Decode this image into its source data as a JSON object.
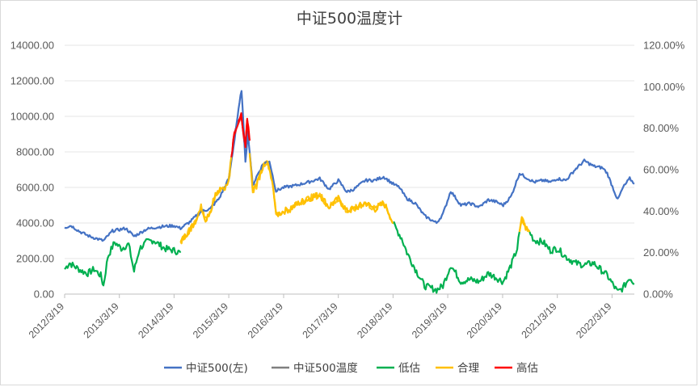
{
  "chart_data": {
    "type": "line",
    "title": "中证500温度计",
    "left_axis": {
      "ticks": [
        "0.00",
        "2000.00",
        "4000.00",
        "6000.00",
        "8000.00",
        "10000.00",
        "12000.00",
        "14000.00"
      ],
      "range": [
        0,
        14000
      ]
    },
    "right_axis": {
      "ticks": [
        "0.00%",
        "20.00%",
        "40.00%",
        "60.00%",
        "80.00%",
        "100.00%",
        "120.00%"
      ],
      "range": [
        0,
        120
      ]
    },
    "x_ticks": [
      "2012/3/19",
      "2013/3/19",
      "2014/3/19",
      "2015/3/19",
      "2016/3/19",
      "2017/3/19",
      "2018/3/19",
      "2019/3/19",
      "2020/3/19",
      "2021/3/19",
      "2022/3/19"
    ],
    "x_range": [
      "2012-03-19",
      "2022-08-15"
    ],
    "legend": [
      "中证500(左)",
      "中证500温度",
      "低估",
      "合理",
      "高估"
    ],
    "colors": {
      "index": "#4472c4",
      "temperature": "#7f7f7f",
      "low": "#00b050",
      "mid": "#ffc000",
      "high": "#ff0000"
    },
    "series": [
      {
        "name": "中证500(左)",
        "axis": "left",
        "points": [
          [
            "2012-03-19",
            3750
          ],
          [
            "2012-05-01",
            3850
          ],
          [
            "2012-07-01",
            3500
          ],
          [
            "2012-09-01",
            3250
          ],
          [
            "2012-12-03",
            3000
          ],
          [
            "2013-02-01",
            3550
          ],
          [
            "2013-05-01",
            3700
          ],
          [
            "2013-06-25",
            3250
          ],
          [
            "2013-09-15",
            3650
          ],
          [
            "2013-11-15",
            3750
          ],
          [
            "2014-01-01",
            3800
          ],
          [
            "2014-03-19",
            3850
          ],
          [
            "2014-05-01",
            3700
          ],
          [
            "2014-07-01",
            4050
          ],
          [
            "2014-09-15",
            4650
          ],
          [
            "2014-11-15",
            4800
          ],
          [
            "2015-01-15",
            5400
          ],
          [
            "2015-03-19",
            6500
          ],
          [
            "2015-04-20",
            8300
          ],
          [
            "2015-05-10",
            9600
          ],
          [
            "2015-06-12",
            11500
          ],
          [
            "2015-07-08",
            7500
          ],
          [
            "2015-07-25",
            9100
          ],
          [
            "2015-08-26",
            6100
          ],
          [
            "2015-09-20",
            6600
          ],
          [
            "2015-11-01",
            7300
          ],
          [
            "2015-12-15",
            7500
          ],
          [
            "2016-01-28",
            5800
          ],
          [
            "2016-03-19",
            6000
          ],
          [
            "2016-06-01",
            6100
          ],
          [
            "2016-09-01",
            6300
          ],
          [
            "2016-11-15",
            6500
          ],
          [
            "2017-01-16",
            5900
          ],
          [
            "2017-03-19",
            6400
          ],
          [
            "2017-05-15",
            5750
          ],
          [
            "2017-07-01",
            5900
          ],
          [
            "2017-09-15",
            6400
          ],
          [
            "2017-11-15",
            6400
          ],
          [
            "2018-01-15",
            6600
          ],
          [
            "2018-03-19",
            6200
          ],
          [
            "2018-05-01",
            6000
          ],
          [
            "2018-06-15",
            5400
          ],
          [
            "2018-08-15",
            5100
          ],
          [
            "2018-10-15",
            4400
          ],
          [
            "2019-01-03",
            4000
          ],
          [
            "2019-02-15",
            4500
          ],
          [
            "2019-04-08",
            5800
          ],
          [
            "2019-06-15",
            5000
          ],
          [
            "2019-08-15",
            5100
          ],
          [
            "2019-10-15",
            4900
          ],
          [
            "2019-12-15",
            5300
          ],
          [
            "2020-02-03",
            5200
          ],
          [
            "2020-03-23",
            5000
          ],
          [
            "2020-05-15",
            5500
          ],
          [
            "2020-07-10",
            6800
          ],
          [
            "2020-08-15",
            6600
          ],
          [
            "2020-10-15",
            6300
          ],
          [
            "2020-12-15",
            6400
          ],
          [
            "2021-02-01",
            6300
          ],
          [
            "2021-03-19",
            6500
          ],
          [
            "2021-05-15",
            6400
          ],
          [
            "2021-07-15",
            7000
          ],
          [
            "2021-09-15",
            7500
          ],
          [
            "2021-11-15",
            7200
          ],
          [
            "2022-01-15",
            7100
          ],
          [
            "2022-02-15",
            6800
          ],
          [
            "2022-04-26",
            5300
          ],
          [
            "2022-06-01",
            6000
          ],
          [
            "2022-07-15",
            6500
          ],
          [
            "2022-08-15",
            6200
          ]
        ]
      },
      {
        "name": "中证500温度",
        "axis": "right",
        "segments": [
          {
            "zone": "low",
            "points": [
              [
                "2012-03-19",
                12
              ],
              [
                "2012-04-20",
                15
              ],
              [
                "2012-06-01",
                13
              ],
              [
                "2012-07-15",
                11
              ],
              [
                "2012-08-20",
                10
              ],
              [
                "2012-10-01",
                12
              ],
              [
                "2012-11-15",
                9
              ],
              [
                "2012-12-03",
                4
              ],
              [
                "2013-01-01",
                18
              ],
              [
                "2013-02-15",
                25
              ],
              [
                "2013-04-01",
                22
              ],
              [
                "2013-05-20",
                24
              ],
              [
                "2013-06-25",
                11
              ],
              [
                "2013-08-01",
                22
              ],
              [
                "2013-09-15",
                25
              ],
              [
                "2013-11-01",
                26
              ],
              [
                "2014-01-15",
                22
              ],
              [
                "2014-03-19",
                21
              ],
              [
                "2014-05-01",
                20
              ]
            ]
          },
          {
            "zone": "mid",
            "points": [
              [
                "2014-05-01",
                25
              ],
              [
                "2014-06-20",
                30
              ],
              [
                "2014-08-01",
                34
              ],
              [
                "2014-09-15",
                42
              ],
              [
                "2014-10-15",
                36
              ],
              [
                "2014-11-20",
                41
              ],
              [
                "2014-12-20",
                48
              ],
              [
                "2015-01-20",
                50
              ],
              [
                "2015-03-01",
                52
              ],
              [
                "2015-03-25",
                58
              ],
              [
                "2015-04-05",
                66
              ]
            ]
          },
          {
            "zone": "high",
            "points": [
              [
                "2015-04-05",
                66
              ],
              [
                "2015-04-25",
                78
              ],
              [
                "2015-05-15",
                82
              ],
              [
                "2015-06-01",
                85
              ],
              [
                "2015-06-10",
                88
              ],
              [
                "2015-06-18",
                80
              ],
              [
                "2015-07-08",
                70
              ],
              [
                "2015-07-20",
                84
              ],
              [
                "2015-08-05",
                74
              ]
            ]
          },
          {
            "zone": "mid",
            "points": [
              [
                "2015-08-05",
                68
              ],
              [
                "2015-08-26",
                50
              ],
              [
                "2015-09-20",
                52
              ],
              [
                "2015-10-25",
                60
              ],
              [
                "2015-11-20",
                64
              ],
              [
                "2015-12-10",
                62
              ],
              [
                "2016-01-10",
                52
              ],
              [
                "2016-01-28",
                38
              ],
              [
                "2016-03-19",
                40
              ],
              [
                "2016-05-01",
                41
              ],
              [
                "2016-07-01",
                44
              ],
              [
                "2016-09-01",
                46
              ],
              [
                "2016-11-15",
                48
              ],
              [
                "2017-01-16",
                42
              ],
              [
                "2017-03-19",
                46
              ],
              [
                "2017-05-15",
                40
              ],
              [
                "2017-07-01",
                41
              ],
              [
                "2017-09-15",
                44
              ],
              [
                "2017-11-20",
                41
              ],
              [
                "2018-01-15",
                44
              ],
              [
                "2018-02-15",
                40
              ],
              [
                "2018-03-19",
                34
              ]
            ]
          },
          {
            "zone": "low",
            "points": [
              [
                "2018-03-19",
                34
              ],
              [
                "2018-05-15",
                27
              ],
              [
                "2018-06-20",
                20
              ],
              [
                "2018-08-15",
                12
              ],
              [
                "2018-10-15",
                4
              ],
              [
                "2019-01-03",
                2
              ],
              [
                "2019-02-15",
                4
              ],
              [
                "2019-04-08",
                14
              ],
              [
                "2019-06-15",
                6
              ],
              [
                "2019-08-15",
                7
              ],
              [
                "2019-10-15",
                6
              ],
              [
                "2019-12-15",
                10
              ],
              [
                "2020-02-03",
                8
              ],
              [
                "2020-03-23",
                6
              ],
              [
                "2020-05-15",
                14
              ],
              [
                "2020-06-25",
                22
              ],
              [
                "2020-07-10",
                30
              ]
            ]
          },
          {
            "zone": "mid",
            "points": [
              [
                "2020-07-10",
                30
              ],
              [
                "2020-07-25",
                36
              ],
              [
                "2020-08-20",
                32
              ],
              [
                "2020-09-15",
                30
              ]
            ]
          },
          {
            "zone": "low",
            "points": [
              [
                "2020-09-15",
                30
              ],
              [
                "2020-10-15",
                26
              ],
              [
                "2020-12-15",
                25
              ],
              [
                "2021-02-01",
                21
              ],
              [
                "2021-03-19",
                22
              ],
              [
                "2021-05-15",
                18
              ],
              [
                "2021-07-15",
                15
              ],
              [
                "2021-09-15",
                14
              ],
              [
                "2021-11-15",
                15
              ],
              [
                "2022-01-15",
                11
              ],
              [
                "2022-02-15",
                9
              ],
              [
                "2022-04-26",
                1
              ],
              [
                "2022-06-01",
                3
              ],
              [
                "2022-07-15",
                8
              ],
              [
                "2022-08-15",
                5
              ]
            ]
          }
        ]
      }
    ]
  }
}
